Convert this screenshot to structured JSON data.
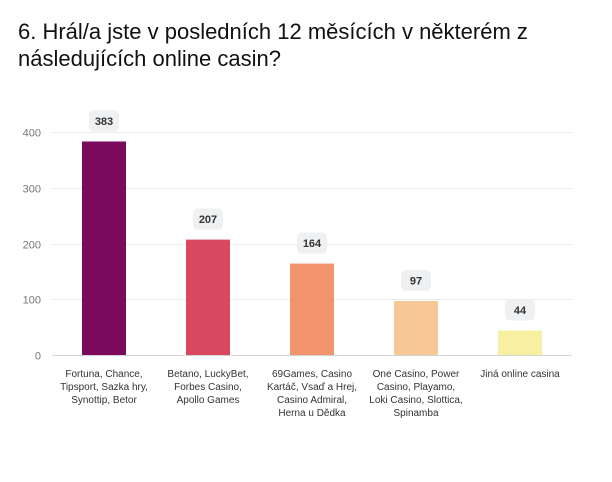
{
  "chart_data": {
    "type": "bar",
    "title": "6. Hrál/a jste v posledních 12 měsících v některém z následujících online casin?",
    "xlabel": "",
    "ylabel": "",
    "ylim": [
      0,
      400
    ],
    "yticks": [
      0,
      100,
      200,
      300,
      400
    ],
    "grid": true,
    "legend": "none",
    "categories": [
      [
        "Fortuna, Chance,",
        "Tipsport, Sazka hry,",
        "Synottip, Betor"
      ],
      [
        "Betano, LuckyBet,",
        "Forbes Casino,",
        "Apollo Games"
      ],
      [
        "69Games, Casino",
        "Kartáč, Vsaď a Hrej,",
        "Casino Admiral,",
        "Herna u Dědka"
      ],
      [
        "One Casino, Power",
        "Casino, Playamo,",
        "Loki Casino, Slottica,",
        "Spinamba"
      ],
      [
        "Jiná online casina"
      ]
    ],
    "values": [
      383,
      207,
      164,
      97,
      44
    ],
    "colors": [
      "#7a0b5c",
      "#d8495f",
      "#f2956e",
      "#f8c796",
      "#f7f0a3"
    ]
  }
}
